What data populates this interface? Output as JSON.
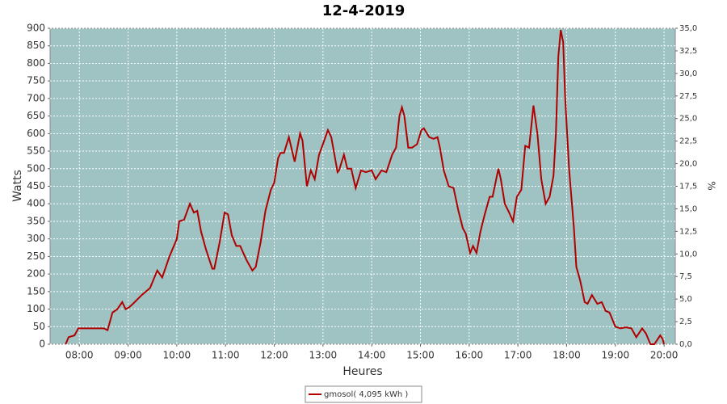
{
  "chart_data": {
    "type": "line",
    "title": "12-4-2019",
    "x_label": "Heures",
    "y_label": "Watts",
    "y2_label": "%",
    "x": [
      7.72,
      7.78,
      7.9,
      7.98,
      8.05,
      8.5,
      8.58,
      8.68,
      8.78,
      8.88,
      8.95,
      9.02,
      9.1,
      9.28,
      9.45,
      9.6,
      9.7,
      9.85,
      10.0,
      10.05,
      10.15,
      10.27,
      10.35,
      10.42,
      10.5,
      10.6,
      10.73,
      10.77,
      10.88,
      10.98,
      11.05,
      11.13,
      11.22,
      11.3,
      11.43,
      11.55,
      11.62,
      11.72,
      11.82,
      11.93,
      12.0,
      12.08,
      12.13,
      12.2,
      12.3,
      12.42,
      12.53,
      12.58,
      12.67,
      12.75,
      12.83,
      12.92,
      13.0,
      13.1,
      13.17,
      13.3,
      13.33,
      13.43,
      13.5,
      13.58,
      13.67,
      13.78,
      13.88,
      14.0,
      14.08,
      14.2,
      14.3,
      14.42,
      14.5,
      14.57,
      14.62,
      14.67,
      14.75,
      14.83,
      14.93,
      15.02,
      15.07,
      15.18,
      15.27,
      15.35,
      15.4,
      15.48,
      15.58,
      15.68,
      15.78,
      15.87,
      15.93,
      16.02,
      16.08,
      16.15,
      16.23,
      16.32,
      16.42,
      16.48,
      16.6,
      16.65,
      16.73,
      16.82,
      16.9,
      16.98,
      17.07,
      17.15,
      17.23,
      17.32,
      17.4,
      17.48,
      17.57,
      17.65,
      17.73,
      17.78,
      17.83,
      17.88,
      17.93,
      17.97,
      18.05,
      18.15,
      18.2,
      18.28,
      18.37,
      18.43,
      18.52,
      18.63,
      18.72,
      18.8,
      18.88,
      19.0,
      19.1,
      19.22,
      19.33,
      19.43,
      19.55,
      19.63,
      19.72,
      19.8,
      19.92,
      19.97,
      20.0
    ],
    "series": [
      {
        "name": "gmosol( 4,095 kWh )",
        "color": "#b00000",
        "values": [
          0,
          20,
          25,
          45,
          45,
          45,
          40,
          90,
          100,
          120,
          100,
          105,
          115,
          140,
          160,
          210,
          190,
          250,
          300,
          350,
          355,
          400,
          375,
          380,
          320,
          270,
          215,
          215,
          290,
          375,
          370,
          310,
          280,
          280,
          240,
          210,
          220,
          290,
          380,
          440,
          460,
          530,
          545,
          545,
          590,
          520,
          600,
          580,
          450,
          495,
          470,
          540,
          570,
          610,
          590,
          490,
          495,
          540,
          500,
          500,
          445,
          495,
          490,
          495,
          470,
          495,
          490,
          540,
          560,
          650,
          675,
          650,
          560,
          560,
          570,
          610,
          615,
          590,
          585,
          590,
          560,
          495,
          450,
          445,
          380,
          330,
          315,
          260,
          280,
          260,
          320,
          370,
          420,
          420,
          500,
          470,
          400,
          375,
          350,
          420,
          440,
          565,
          560,
          680,
          600,
          470,
          400,
          420,
          480,
          600,
          820,
          895,
          860,
          700,
          500,
          330,
          220,
          180,
          120,
          115,
          140,
          115,
          120,
          95,
          90,
          50,
          45,
          48,
          45,
          20,
          45,
          30,
          0,
          0,
          25,
          15,
          0
        ]
      }
    ],
    "xlim": [
      7.4,
      20.23
    ],
    "xticks": [
      {
        "value": 8,
        "label": "08:00"
      },
      {
        "value": 9,
        "label": "09:00"
      },
      {
        "value": 10,
        "label": "10:00"
      },
      {
        "value": 11,
        "label": "11:00"
      },
      {
        "value": 12,
        "label": "12:00"
      },
      {
        "value": 13,
        "label": "13:00"
      },
      {
        "value": 14,
        "label": "14:00"
      },
      {
        "value": 15,
        "label": "15:00"
      },
      {
        "value": 16,
        "label": "16:00"
      },
      {
        "value": 17,
        "label": "17:00"
      },
      {
        "value": 18,
        "label": "18:00"
      },
      {
        "value": 19,
        "label": "19:00"
      },
      {
        "value": 20,
        "label": "20:00"
      }
    ],
    "ylim": [
      0,
      900
    ],
    "yticks": [
      0,
      50,
      100,
      150,
      200,
      250,
      300,
      350,
      400,
      450,
      500,
      550,
      600,
      650,
      700,
      750,
      800,
      850,
      900
    ],
    "y2lim": [
      0,
      35
    ],
    "y2ticks": [
      {
        "value": 0,
        "label": "0,0"
      },
      {
        "value": 2.5,
        "label": "2,5"
      },
      {
        "value": 5,
        "label": "5,0"
      },
      {
        "value": 7.5,
        "label": "7,5"
      },
      {
        "value": 10,
        "label": "10,0"
      },
      {
        "value": 12.5,
        "label": "12,5"
      },
      {
        "value": 15,
        "label": "15,0"
      },
      {
        "value": 17.5,
        "label": "17,5"
      },
      {
        "value": 20,
        "label": "20,0"
      },
      {
        "value": 22.5,
        "label": "22,5"
      },
      {
        "value": 25,
        "label": "25,0"
      },
      {
        "value": 27.5,
        "label": "27,5"
      },
      {
        "value": 30,
        "label": "30,0"
      },
      {
        "value": 32.5,
        "label": "32,5"
      },
      {
        "value": 35,
        "label": "35,0"
      }
    ],
    "grid": true,
    "background": "#9fc3c3"
  }
}
